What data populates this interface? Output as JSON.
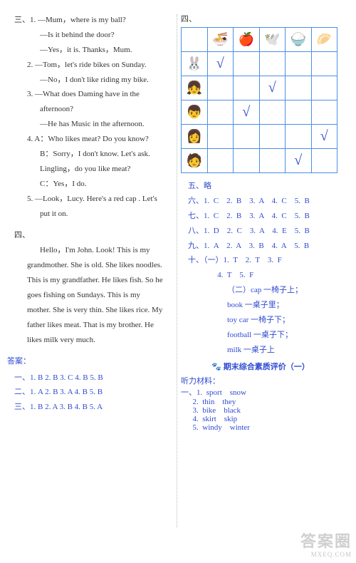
{
  "left": {
    "sec3": {
      "label": "三、",
      "items": [
        {
          "n": "1.",
          "lines": [
            "—Mum，where is my ball?",
            "—Is it behind the door?",
            "—Yes，it is.  Thanks，Mum."
          ]
        },
        {
          "n": "2.",
          "lines": [
            "—Tom，let's ride bikes on Sunday.",
            "—No，I don't like riding my bike."
          ]
        },
        {
          "n": "3.",
          "lines": [
            "—What does Daming have in the afternoon?",
            "—He has Music in the afternoon."
          ]
        },
        {
          "n": "4.",
          "lines": [
            "A：Who likes meat? Do you know?",
            "B：Sorry，I don't know.  Let's ask.  Lingling，do you like meat?",
            "C：Yes，I do."
          ]
        },
        {
          "n": "5.",
          "lines": [
            "—Look，Lucy.  Here's a red cap .  Let's put it on."
          ]
        }
      ]
    },
    "sec4": {
      "label": "四、",
      "para": "Hello，I'm John.  Look! This is my grandmother.  She is old.  She likes noodles.  This is my grandfather.  He likes fish.  So he goes fishing on Sundays.  This is my mother.  She is very thin. She likes rice.  My father likes meat.  That is my brother.  He likes milk very much."
    },
    "ansHeader": "答案：",
    "ans": [
      "一、1.  B    2.  B    3.  C    4.  B    5.  B",
      "二、1.  A    2.  B    3.  A    4.  B    5.  B",
      "三、1.  B    2.  A    3.  B    4.  B    5.  A"
    ]
  },
  "right": {
    "sec4label": "四、",
    "table": {
      "border_color": "#4a90e2",
      "check_color": "#2f4bd0",
      "cols": [
        "🍜",
        "🍎",
        "🕊️",
        "🍚",
        "🥟"
      ],
      "rows": [
        {
          "icon": "🐰",
          "checks": [
            true,
            false,
            false,
            false,
            false
          ]
        },
        {
          "icon": "👧",
          "checks": [
            false,
            false,
            true,
            false,
            false
          ]
        },
        {
          "icon": "👦",
          "checks": [
            false,
            true,
            false,
            false,
            false
          ]
        },
        {
          "icon": "👩",
          "checks": [
            false,
            false,
            false,
            false,
            true
          ]
        },
        {
          "icon": "🧑",
          "checks": [
            false,
            false,
            false,
            true,
            false
          ]
        }
      ]
    },
    "lines": [
      "五、略",
      "六、1.  C    2.  B    3.  A    4.  C    5.  B",
      "七、1.  C    2.  B    3.  A    4.  C    5.  B",
      "八、1.  D    2.  C    3.  A    4.  E    5.  B",
      "九、1.  A    2.  A    3.  B    4.  A    5.  B",
      "十、（一）1.  T    2.  T    3.  F",
      "4.  T    5.  F",
      "（二）cap 一椅子上；",
      "book 一桌子里；",
      "toy car 一椅子下；",
      "football 一桌子下；",
      "milk 一桌子上"
    ],
    "indentA": "               ",
    "indentB": "                    ",
    "title": "期末综合素质评价（一）",
    "paw": "🐾",
    "tingli": "听力材料：",
    "tinglist": {
      "label": "一、",
      "items": [
        "1.  sport    snow",
        "2.  thin    they",
        "3.  bike    black",
        "4.  skirt    skip",
        "5.  windy    winter"
      ]
    }
  },
  "watermark": {
    "line1": "答案圈",
    "line2": "MXEQ.COM"
  }
}
